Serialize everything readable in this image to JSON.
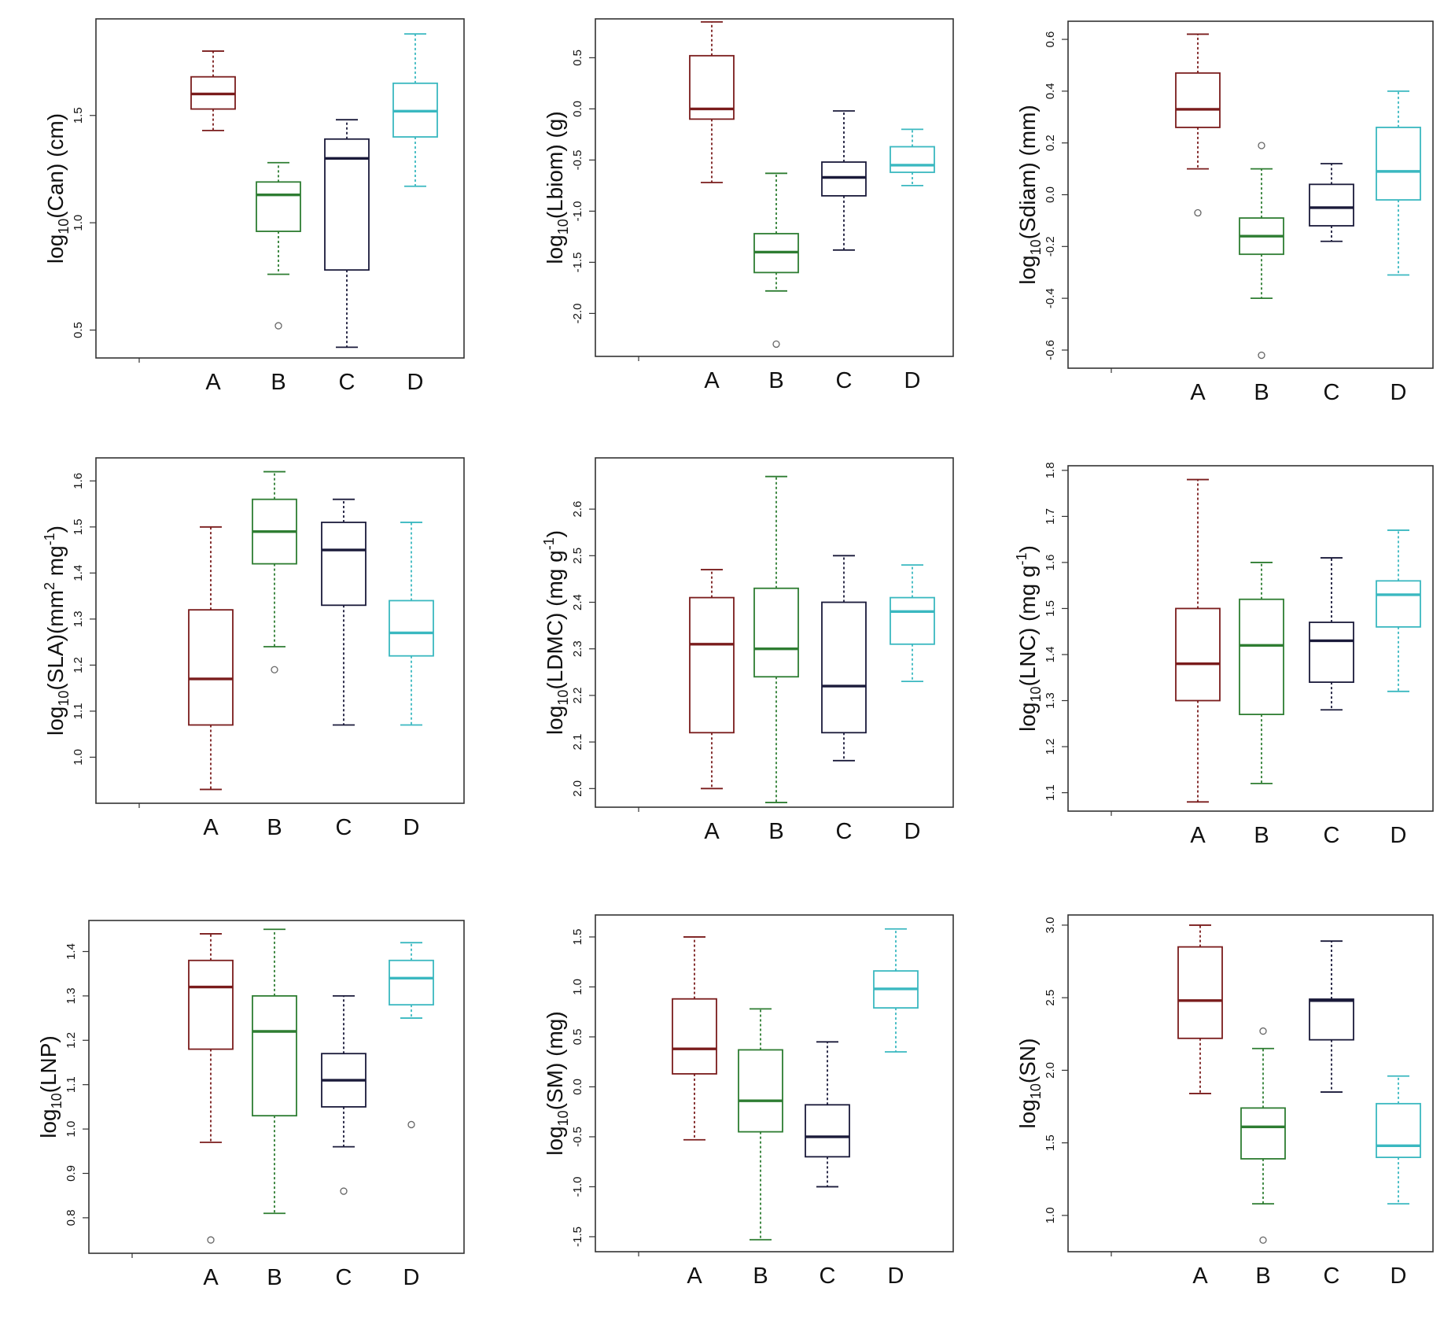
{
  "colors": {
    "A": "#7a1c1c",
    "B": "#2e7d32",
    "C": "#1a1a3a",
    "D": "#3ab8c0",
    "frame": "#333333",
    "text": "#111111"
  },
  "chart_data": [
    {
      "type": "box",
      "categories": [
        "A",
        "B",
        "C",
        "D"
      ],
      "ylabel": {
        "prefix": "log",
        "sub": "10",
        "rest": "(Can)  (cm)"
      },
      "ylim": [
        0.37,
        1.95
      ],
      "yticks": [
        0.5,
        1.0,
        1.5
      ],
      "ytick_labels": [
        "0.5",
        "1.0",
        "1.5"
      ],
      "boxes": [
        {
          "whisker_low": 1.43,
          "q1": 1.53,
          "median": 1.6,
          "q3": 1.68,
          "whisker_high": 1.8,
          "outliers": []
        },
        {
          "whisker_low": 0.76,
          "q1": 0.96,
          "median": 1.13,
          "q3": 1.19,
          "whisker_high": 1.28,
          "outliers": [
            0.52
          ]
        },
        {
          "whisker_low": 0.42,
          "q1": 0.78,
          "median": 1.3,
          "q3": 1.39,
          "whisker_high": 1.48,
          "outliers": []
        },
        {
          "whisker_low": 1.17,
          "q1": 1.4,
          "median": 1.52,
          "q3": 1.65,
          "whisker_high": 1.88,
          "outliers": []
        }
      ]
    },
    {
      "type": "box",
      "categories": [
        "A",
        "B",
        "C",
        "D"
      ],
      "ylabel": {
        "prefix": "log",
        "sub": "10",
        "rest": "(Lbiom) (g)"
      },
      "ylim": [
        -2.42,
        0.88
      ],
      "yticks": [
        0.5,
        0.0,
        -0.5,
        -1.0,
        -1.5,
        -2.0
      ],
      "ytick_labels": [
        "0.5",
        "0.0",
        "-0.5",
        "-1.0",
        "-1.5",
        "-2.0"
      ],
      "boxes": [
        {
          "whisker_low": -0.72,
          "q1": -0.1,
          "median": 0.0,
          "q3": 0.52,
          "whisker_high": 0.85,
          "outliers": []
        },
        {
          "whisker_low": -1.78,
          "q1": -1.6,
          "median": -1.4,
          "q3": -1.22,
          "whisker_high": -0.63,
          "outliers": [
            -2.3
          ]
        },
        {
          "whisker_low": -1.38,
          "q1": -0.85,
          "median": -0.67,
          "q3": -0.52,
          "whisker_high": -0.02,
          "outliers": []
        },
        {
          "whisker_low": -0.75,
          "q1": -0.62,
          "median": -0.55,
          "q3": -0.37,
          "whisker_high": -0.2,
          "outliers": []
        }
      ]
    },
    {
      "type": "box",
      "categories": [
        "A",
        "B",
        "C",
        "D"
      ],
      "ylabel": {
        "prefix": "log",
        "sub": "10",
        "rest": "(Sdiam) (mm)"
      },
      "ylim": [
        -0.67,
        0.67
      ],
      "yticks": [
        0.6,
        0.4,
        0.2,
        0.0,
        -0.2,
        -0.4,
        -0.6
      ],
      "ytick_labels": [
        "0.6",
        "0.4",
        "0.2",
        "0.0",
        "-0.2",
        "-0.4",
        "-0.6"
      ],
      "boxes": [
        {
          "whisker_low": 0.1,
          "q1": 0.26,
          "median": 0.33,
          "q3": 0.47,
          "whisker_high": 0.62,
          "outliers": [
            -0.07
          ]
        },
        {
          "whisker_low": -0.4,
          "q1": -0.23,
          "median": -0.16,
          "q3": -0.09,
          "whisker_high": 0.1,
          "outliers": [
            0.19,
            -0.62
          ]
        },
        {
          "whisker_low": -0.18,
          "q1": -0.12,
          "median": -0.05,
          "q3": 0.04,
          "whisker_high": 0.12,
          "outliers": []
        },
        {
          "whisker_low": -0.31,
          "q1": -0.02,
          "median": 0.09,
          "q3": 0.26,
          "whisker_high": 0.4,
          "outliers": []
        }
      ]
    },
    {
      "type": "box",
      "categories": [
        "A",
        "B",
        "C",
        "D"
      ],
      "ylabel": {
        "prefix": "log",
        "sub": "10",
        "rest": "(SLA)(mm",
        "sup": "2",
        "rest2": " mg",
        "sup2": "-1",
        "rest3": ")"
      },
      "ylim": [
        0.9,
        1.65
      ],
      "yticks": [
        1.0,
        1.1,
        1.2,
        1.3,
        1.4,
        1.5,
        1.6
      ],
      "ytick_labels": [
        "1.0",
        "1.1",
        "1.2",
        "1.3",
        "1.4",
        "1.5",
        "1.6"
      ],
      "boxes": [
        {
          "whisker_low": 0.93,
          "q1": 1.07,
          "median": 1.17,
          "q3": 1.32,
          "whisker_high": 1.5,
          "outliers": []
        },
        {
          "whisker_low": 1.24,
          "q1": 1.42,
          "median": 1.49,
          "q3": 1.56,
          "whisker_high": 1.62,
          "outliers": [
            1.19
          ]
        },
        {
          "whisker_low": 1.07,
          "q1": 1.33,
          "median": 1.45,
          "q3": 1.51,
          "whisker_high": 1.56,
          "outliers": []
        },
        {
          "whisker_low": 1.07,
          "q1": 1.22,
          "median": 1.27,
          "q3": 1.34,
          "whisker_high": 1.51,
          "outliers": []
        }
      ]
    },
    {
      "type": "box",
      "categories": [
        "A",
        "B",
        "C",
        "D"
      ],
      "ylabel": {
        "prefix": "log",
        "sub": "10",
        "rest": "(LDMC)  (mg g",
        "sup": "-1",
        "rest2": ")"
      },
      "ylim": [
        1.96,
        2.71
      ],
      "yticks": [
        2.0,
        2.1,
        2.2,
        2.3,
        2.4,
        2.5,
        2.6
      ],
      "ytick_labels": [
        "2.0",
        "2.1",
        "2.2",
        "2.3",
        "2.4",
        "2.5",
        "2.6"
      ],
      "boxes": [
        {
          "whisker_low": 2.0,
          "q1": 2.12,
          "median": 2.31,
          "q3": 2.41,
          "whisker_high": 2.47,
          "outliers": []
        },
        {
          "whisker_low": 1.97,
          "q1": 2.24,
          "median": 2.3,
          "q3": 2.43,
          "whisker_high": 2.67,
          "outliers": []
        },
        {
          "whisker_low": 2.06,
          "q1": 2.12,
          "median": 2.22,
          "q3": 2.4,
          "whisker_high": 2.5,
          "outliers": []
        },
        {
          "whisker_low": 2.23,
          "q1": 2.31,
          "median": 2.38,
          "q3": 2.41,
          "whisker_high": 2.48,
          "outliers": []
        }
      ]
    },
    {
      "type": "box",
      "categories": [
        "A",
        "B",
        "C",
        "D"
      ],
      "ylabel": {
        "prefix": "log",
        "sub": "10",
        "rest": "(LNC)  (mg g",
        "sup": "-1",
        "rest2": ")"
      },
      "ylim": [
        1.06,
        1.81
      ],
      "yticks": [
        1.1,
        1.2,
        1.3,
        1.4,
        1.5,
        1.6,
        1.7,
        1.8
      ],
      "ytick_labels": [
        "1.1",
        "1.2",
        "1.3",
        "1.4",
        "1.5",
        "1.6",
        "1.7",
        "1.8"
      ],
      "boxes": [
        {
          "whisker_low": 1.08,
          "q1": 1.3,
          "median": 1.38,
          "q3": 1.5,
          "whisker_high": 1.78,
          "outliers": []
        },
        {
          "whisker_low": 1.12,
          "q1": 1.27,
          "median": 1.42,
          "q3": 1.52,
          "whisker_high": 1.6,
          "outliers": []
        },
        {
          "whisker_low": 1.28,
          "q1": 1.34,
          "median": 1.43,
          "q3": 1.47,
          "whisker_high": 1.61,
          "outliers": []
        },
        {
          "whisker_low": 1.32,
          "q1": 1.46,
          "median": 1.53,
          "q3": 1.56,
          "whisker_high": 1.67,
          "outliers": []
        }
      ]
    },
    {
      "type": "box",
      "categories": [
        "A",
        "B",
        "C",
        "D"
      ],
      "ylabel": {
        "prefix": "log",
        "sub": "10",
        "rest": "(LNP)"
      },
      "ylim": [
        0.72,
        1.47
      ],
      "yticks": [
        0.8,
        0.9,
        1.0,
        1.1,
        1.2,
        1.3,
        1.4
      ],
      "ytick_labels": [
        "0.8",
        "0.9",
        "1.0",
        "1.1",
        "1.2",
        "1.3",
        "1.4"
      ],
      "boxes": [
        {
          "whisker_low": 0.97,
          "q1": 1.18,
          "median": 1.32,
          "q3": 1.38,
          "whisker_high": 1.44,
          "outliers": [
            0.75
          ]
        },
        {
          "whisker_low": 0.81,
          "q1": 1.03,
          "median": 1.22,
          "q3": 1.3,
          "whisker_high": 1.45,
          "outliers": []
        },
        {
          "whisker_low": 0.96,
          "q1": 1.05,
          "median": 1.11,
          "q3": 1.17,
          "whisker_high": 1.3,
          "outliers": [
            0.86
          ]
        },
        {
          "whisker_low": 1.25,
          "q1": 1.28,
          "median": 1.34,
          "q3": 1.38,
          "whisker_high": 1.42,
          "outliers": [
            1.01
          ]
        }
      ]
    },
    {
      "type": "box",
      "categories": [
        "A",
        "B",
        "C",
        "D"
      ],
      "ylabel": {
        "prefix": "log",
        "sub": "10",
        "rest": "(SM)  (mg)"
      },
      "ylim": [
        -1.65,
        1.72
      ],
      "yticks": [
        1.5,
        1.0,
        0.5,
        0.0,
        -0.5,
        -1.0,
        -1.5
      ],
      "ytick_labels": [
        "1.5",
        "1.0",
        "0.5",
        "0.0",
        "-0.5",
        "-1.0",
        "-1.5"
      ],
      "boxes": [
        {
          "whisker_low": -0.53,
          "q1": 0.13,
          "median": 0.38,
          "q3": 0.88,
          "whisker_high": 1.5,
          "outliers": []
        },
        {
          "whisker_low": -1.53,
          "q1": -0.45,
          "median": -0.14,
          "q3": 0.37,
          "whisker_high": 0.78,
          "outliers": []
        },
        {
          "whisker_low": -1.0,
          "q1": -0.7,
          "median": -0.5,
          "q3": -0.18,
          "whisker_high": 0.45,
          "outliers": []
        },
        {
          "whisker_low": 0.35,
          "q1": 0.79,
          "median": 0.98,
          "q3": 1.16,
          "whisker_high": 1.58,
          "outliers": []
        }
      ]
    },
    {
      "type": "box",
      "categories": [
        "A",
        "B",
        "C",
        "D"
      ],
      "ylabel": {
        "prefix": "log",
        "sub": "10",
        "rest": "(SN)"
      },
      "ylim": [
        0.75,
        3.07
      ],
      "yticks": [
        1.0,
        1.5,
        2.0,
        2.5,
        3.0
      ],
      "ytick_labels": [
        "1.0",
        "1.5",
        "2.0",
        "2.5",
        "3.0"
      ],
      "boxes": [
        {
          "whisker_low": 1.84,
          "q1": 2.22,
          "median": 2.48,
          "q3": 2.85,
          "whisker_high": 3.0,
          "outliers": []
        },
        {
          "whisker_low": 1.08,
          "q1": 1.39,
          "median": 1.61,
          "q3": 1.74,
          "whisker_high": 2.15,
          "outliers": [
            2.27,
            0.83
          ]
        },
        {
          "whisker_low": 1.85,
          "q1": 2.21,
          "median": 2.48,
          "q3": 2.49,
          "whisker_high": 2.89,
          "outliers": []
        },
        {
          "whisker_low": 1.08,
          "q1": 1.4,
          "median": 1.48,
          "q3": 1.77,
          "whisker_high": 1.96,
          "outliers": []
        }
      ]
    }
  ]
}
